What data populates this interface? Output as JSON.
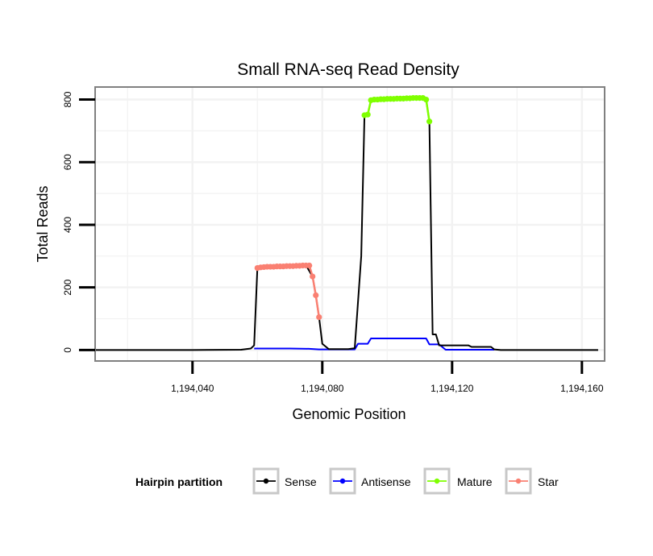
{
  "chart_data": {
    "type": "line",
    "title": "Small RNA-seq Read Density",
    "xlabel": "Genomic Position",
    "ylabel": "Total Reads",
    "xlim": [
      1194010,
      1194167
    ],
    "ylim": [
      -35,
      840
    ],
    "x_ticks": [
      1194040,
      1194080,
      1194120,
      1194160
    ],
    "x_tick_labels": [
      "1,194,040",
      "1,194,080",
      "1,194,120",
      "1,194,160"
    ],
    "y_ticks": [
      0,
      200,
      400,
      600,
      800
    ],
    "y_tick_labels": [
      "0",
      "200",
      "400",
      "600",
      "800"
    ],
    "grid": true,
    "legend": {
      "title": "Hairpin partition",
      "position": "bottom",
      "entries": [
        "Sense",
        "Antisense",
        "Mature",
        "Star"
      ]
    },
    "colors": {
      "Sense": "#000000",
      "Antisense": "#0000ff",
      "Mature": "#7fff00",
      "Star": "#fa8072",
      "panel_border": "#808080",
      "grid": "#f2f2f2"
    },
    "series": [
      {
        "name": "Sense",
        "x": [
          1194010,
          1194040,
          1194055,
          1194058,
          1194059,
          1194060,
          1194065,
          1194070,
          1194075,
          1194077,
          1194078,
          1194079,
          1194080,
          1194082,
          1194088,
          1194090,
          1194092,
          1194093,
          1194094,
          1194095,
          1194100,
          1194105,
          1194110,
          1194112,
          1194113,
          1194114,
          1194115,
          1194116,
          1194118,
          1194125,
          1194126,
          1194132,
          1194133,
          1194135,
          1194165
        ],
        "values": [
          0,
          0,
          1,
          5,
          15,
          262,
          266,
          268,
          270,
          235,
          175,
          105,
          20,
          3,
          3,
          6,
          300,
          750,
          752,
          798,
          802,
          805,
          805,
          800,
          730,
          50,
          50,
          15,
          15,
          15,
          10,
          10,
          2,
          0,
          0
        ]
      },
      {
        "name": "Antisense",
        "x": [
          1194059,
          1194070,
          1194076,
          1194079,
          1194090,
          1194091,
          1194094,
          1194095,
          1194112,
          1194113,
          1194116,
          1194118,
          1194133
        ],
        "values": [
          5,
          5,
          4,
          2,
          2,
          20,
          20,
          37,
          37,
          18,
          18,
          1,
          1
        ]
      },
      {
        "name": "Mature",
        "x": [
          1194093,
          1194094,
          1194095,
          1194096,
          1194097,
          1194098,
          1194099,
          1194100,
          1194101,
          1194102,
          1194103,
          1194104,
          1194105,
          1194106,
          1194107,
          1194108,
          1194109,
          1194110,
          1194111,
          1194112,
          1194113
        ],
        "values": [
          750,
          752,
          798,
          800,
          800,
          801,
          801,
          802,
          802,
          802,
          803,
          803,
          803,
          804,
          804,
          805,
          805,
          805,
          805,
          800,
          730
        ]
      },
      {
        "name": "Star",
        "x": [
          1194060,
          1194061,
          1194062,
          1194063,
          1194064,
          1194065,
          1194066,
          1194067,
          1194068,
          1194069,
          1194070,
          1194071,
          1194072,
          1194073,
          1194074,
          1194075,
          1194076,
          1194077,
          1194078,
          1194079
        ],
        "values": [
          262,
          264,
          265,
          266,
          266,
          266,
          267,
          267,
          267,
          268,
          268,
          268,
          269,
          269,
          270,
          270,
          270,
          235,
          175,
          105
        ]
      }
    ]
  }
}
